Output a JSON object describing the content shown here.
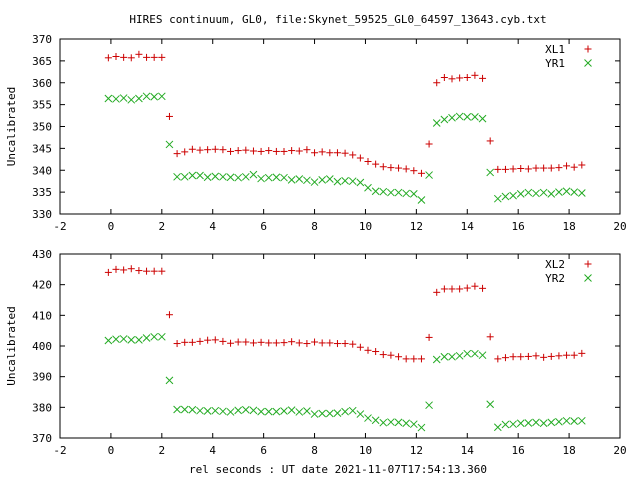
{
  "title": "HIRES continuum, GL0, file:Skynet_59525_GL0_64597_13643.cyb.txt",
  "xlabel": "rel seconds : UT date 2021-11-07T17:54:13.360",
  "colors": {
    "series_a": "#cc0000",
    "series_b": "#22aa22",
    "axis": "#000000"
  },
  "chart_data": [
    {
      "type": "scatter",
      "ylabel": "Uncalibrated",
      "xlim": [
        -2,
        20
      ],
      "ylim": [
        330,
        370
      ],
      "xticks": [
        -2,
        0,
        2,
        4,
        6,
        8,
        10,
        12,
        14,
        16,
        18,
        20
      ],
      "yticks": [
        330,
        335,
        340,
        345,
        350,
        355,
        360,
        365,
        370
      ],
      "legend_position": "top-right",
      "x": [
        -0.1,
        0.2,
        0.5,
        0.8,
        1.1,
        1.4,
        1.7,
        2.0,
        2.3,
        2.6,
        2.9,
        3.2,
        3.5,
        3.8,
        4.1,
        4.4,
        4.7,
        5.0,
        5.3,
        5.6,
        5.9,
        6.2,
        6.5,
        6.8,
        7.1,
        7.4,
        7.7,
        8.0,
        8.3,
        8.6,
        8.9,
        9.2,
        9.5,
        9.8,
        10.1,
        10.4,
        10.7,
        11.0,
        11.3,
        11.6,
        11.9,
        12.2,
        12.5,
        12.8,
        13.1,
        13.4,
        13.7,
        14.0,
        14.3,
        14.6,
        14.9,
        15.2,
        15.5,
        15.8,
        16.1,
        16.4,
        16.7,
        17.0,
        17.3,
        17.6,
        17.9,
        18.2,
        18.5
      ],
      "series": [
        {
          "name": "XL1",
          "marker": "+",
          "values": [
            365.7,
            366.0,
            365.8,
            365.7,
            366.5,
            365.8,
            365.8,
            365.8,
            352.3,
            343.8,
            344.2,
            344.8,
            344.6,
            344.7,
            344.8,
            344.7,
            344.3,
            344.5,
            344.6,
            344.4,
            344.3,
            344.5,
            344.3,
            344.3,
            344.5,
            344.4,
            344.7,
            344.0,
            344.2,
            344.0,
            344.0,
            343.9,
            343.5,
            342.8,
            342.0,
            341.4,
            340.8,
            340.6,
            340.5,
            340.3,
            339.9,
            339.3,
            346.0,
            360.0,
            361.2,
            360.9,
            361.1,
            361.2,
            361.7,
            361.0,
            346.7,
            340.2,
            340.2,
            340.3,
            340.4,
            340.3,
            340.5,
            340.5,
            340.5,
            340.6,
            341.0,
            340.7,
            341.2
          ]
        },
        {
          "name": "YR1",
          "marker": "x",
          "values": [
            356.4,
            356.3,
            356.5,
            356.1,
            356.4,
            356.9,
            356.8,
            356.9,
            345.9,
            338.5,
            338.5,
            338.8,
            338.8,
            338.4,
            338.6,
            338.5,
            338.4,
            338.3,
            338.5,
            339.0,
            338.1,
            338.3,
            338.4,
            338.3,
            337.8,
            338.0,
            337.7,
            337.3,
            337.8,
            338.0,
            337.4,
            337.6,
            337.5,
            337.2,
            336.0,
            335.2,
            335.1,
            334.9,
            334.9,
            334.7,
            334.6,
            333.2,
            338.9,
            350.8,
            351.6,
            352.0,
            352.3,
            352.2,
            352.2,
            351.8,
            339.5,
            333.5,
            334.0,
            334.2,
            334.6,
            334.9,
            334.7,
            334.9,
            334.6,
            335.0,
            335.2,
            335.0,
            334.8
          ]
        }
      ]
    },
    {
      "type": "scatter",
      "ylabel": "Uncalibrated",
      "xlim": [
        -2,
        20
      ],
      "ylim": [
        370,
        430
      ],
      "xticks": [
        -2,
        0,
        2,
        4,
        6,
        8,
        10,
        12,
        14,
        16,
        18,
        20
      ],
      "yticks": [
        370,
        380,
        390,
        400,
        410,
        420,
        430
      ],
      "legend_position": "top-right",
      "x": [
        -0.1,
        0.2,
        0.5,
        0.8,
        1.1,
        1.4,
        1.7,
        2.0,
        2.3,
        2.6,
        2.9,
        3.2,
        3.5,
        3.8,
        4.1,
        4.4,
        4.7,
        5.0,
        5.3,
        5.6,
        5.9,
        6.2,
        6.5,
        6.8,
        7.1,
        7.4,
        7.7,
        8.0,
        8.3,
        8.6,
        8.9,
        9.2,
        9.5,
        9.8,
        10.1,
        10.4,
        10.7,
        11.0,
        11.3,
        11.6,
        11.9,
        12.2,
        12.5,
        12.8,
        13.1,
        13.4,
        13.7,
        14.0,
        14.3,
        14.6,
        14.9,
        15.2,
        15.5,
        15.8,
        16.1,
        16.4,
        16.7,
        17.0,
        17.3,
        17.6,
        17.9,
        18.2,
        18.5
      ],
      "series": [
        {
          "name": "XL2",
          "marker": "+",
          "values": [
            424.0,
            425.0,
            424.8,
            425.2,
            424.6,
            424.4,
            424.4,
            424.4,
            410.2,
            400.8,
            401.2,
            401.2,
            401.5,
            401.9,
            402.0,
            401.5,
            400.9,
            401.3,
            401.3,
            401.0,
            401.2,
            401.0,
            401.0,
            401.1,
            401.4,
            401.0,
            400.8,
            401.3,
            401.0,
            401.0,
            400.8,
            400.8,
            400.6,
            399.6,
            398.6,
            398.2,
            397.2,
            397.0,
            396.5,
            395.8,
            395.8,
            395.8,
            402.8,
            417.5,
            418.6,
            418.6,
            418.6,
            418.9,
            419.5,
            418.8,
            403.0,
            395.8,
            396.2,
            396.5,
            396.5,
            396.6,
            396.8,
            396.3,
            396.6,
            396.8,
            397.0,
            397.0,
            397.6
          ]
        },
        {
          "name": "YR2",
          "marker": "x",
          "values": [
            401.8,
            402.2,
            402.3,
            402.0,
            402.0,
            402.6,
            403.0,
            403.0,
            388.8,
            379.3,
            379.3,
            379.2,
            378.9,
            378.8,
            378.9,
            378.7,
            378.5,
            379.0,
            379.2,
            379.0,
            378.6,
            378.6,
            378.6,
            378.8,
            379.1,
            378.5,
            378.8,
            377.8,
            378.0,
            378.0,
            378.1,
            378.6,
            378.9,
            377.8,
            376.5,
            375.8,
            375.0,
            375.2,
            375.1,
            374.8,
            374.5,
            373.4,
            380.7,
            395.6,
            396.5,
            396.5,
            396.8,
            397.5,
            397.5,
            397.0,
            381.0,
            373.5,
            374.4,
            374.5,
            374.8,
            374.9,
            375.1,
            374.8,
            375.1,
            375.3,
            375.6,
            375.5,
            375.6
          ]
        }
      ]
    }
  ]
}
